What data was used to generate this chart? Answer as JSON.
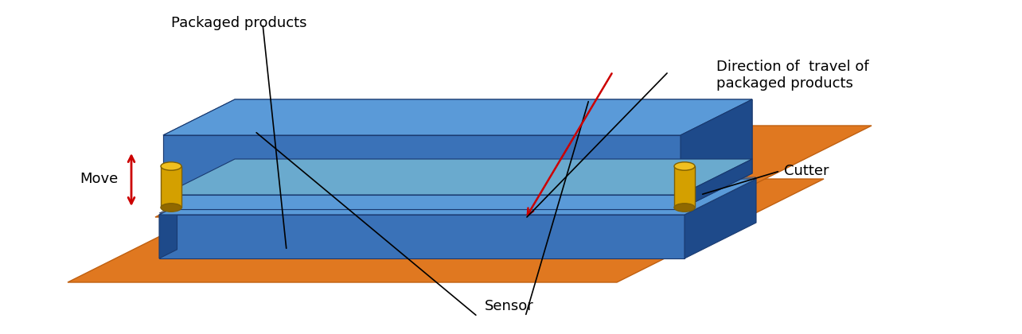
{
  "background_color": "#ffffff",
  "blue_main": "#3A72B8",
  "blue_top": "#5A9AD8",
  "blue_side": "#1E4A8A",
  "blue_dark": "#1A3A70",
  "orange_main": "#E07820",
  "orange_dark": "#B05A10",
  "orange_edge": "#C06010",
  "yellow_body": "#D4A000",
  "yellow_top": "#F0C020",
  "yellow_dark": "#906800",
  "gray_line": "#8B7B6B",
  "red_color": "#CC0000",
  "text_color": "#000000",
  "label_sensor": "Sensor",
  "label_cutter": "Cutter",
  "label_move": "Move",
  "label_packaged": "Packaged products",
  "label_direction": "Direction of  travel of\npackaged products",
  "fontsize": 13
}
